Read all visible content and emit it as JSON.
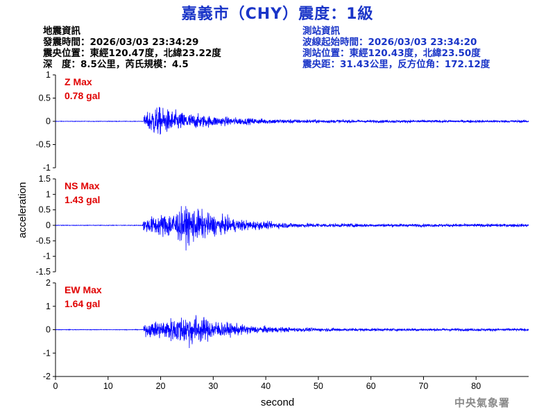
{
  "header": {
    "title": "嘉義市（CHY）震度：1級"
  },
  "earthquake_info": {
    "heading": "地震資訊",
    "origin_time": "發震時間：2026/03/03 23:34:29",
    "epicenter": "震央位置：東經120.47度，北緯23.22度",
    "depth_magnitude": "深　度：8.5公里，芮氏規模：4.5"
  },
  "station_info": {
    "heading": "測站資訊",
    "wave_start": "波線起始時間：2026/03/03 23:34:20",
    "location": "測站位置：東經120.43度，北緯23.50度",
    "distance": "震央距：31.43公里，反方位角：172.12度"
  },
  "credit": "中央氣象署",
  "chart_data": {
    "type": "line",
    "xlabel": "second",
    "ylabel": "acceleration",
    "xlim": [
      0,
      90
    ],
    "x_ticks": [
      "0",
      "10",
      "20",
      "30",
      "40",
      "50",
      "60",
      "70",
      "80"
    ],
    "grid": false,
    "line_color": "#0000ff",
    "label_color": "#e00000",
    "panels": [
      {
        "name": "Z Max",
        "peak": "0.78 gal",
        "ylim": [
          -1,
          1
        ],
        "y_ticks": [
          "1",
          "0.5",
          "0",
          "-0.5",
          "-1"
        ],
        "y_tick_values": [
          1,
          0.5,
          0,
          -0.5,
          -1
        ],
        "p_arrival": 16.8,
        "peak_value": 0.78
      },
      {
        "name": "NS Max",
        "peak": "1.43 gal",
        "ylim": [
          -1.5,
          1.5
        ],
        "y_ticks": [
          "1.5",
          "1",
          "0.5",
          "0",
          "-0.5",
          "-1",
          "-1.5"
        ],
        "y_tick_values": [
          1.5,
          1,
          0.5,
          0,
          -0.5,
          -1,
          -1.5
        ],
        "p_arrival": 16.6,
        "peak_value": 1.43
      },
      {
        "name": "EW Max",
        "peak": "1.64 gal",
        "ylim": [
          -2,
          2
        ],
        "y_ticks": [
          "2",
          "1",
          "0",
          "-1",
          "-2"
        ],
        "y_tick_values": [
          2,
          1,
          0,
          -1,
          -2
        ],
        "p_arrival": 16.8,
        "peak_value": 1.64
      }
    ]
  }
}
